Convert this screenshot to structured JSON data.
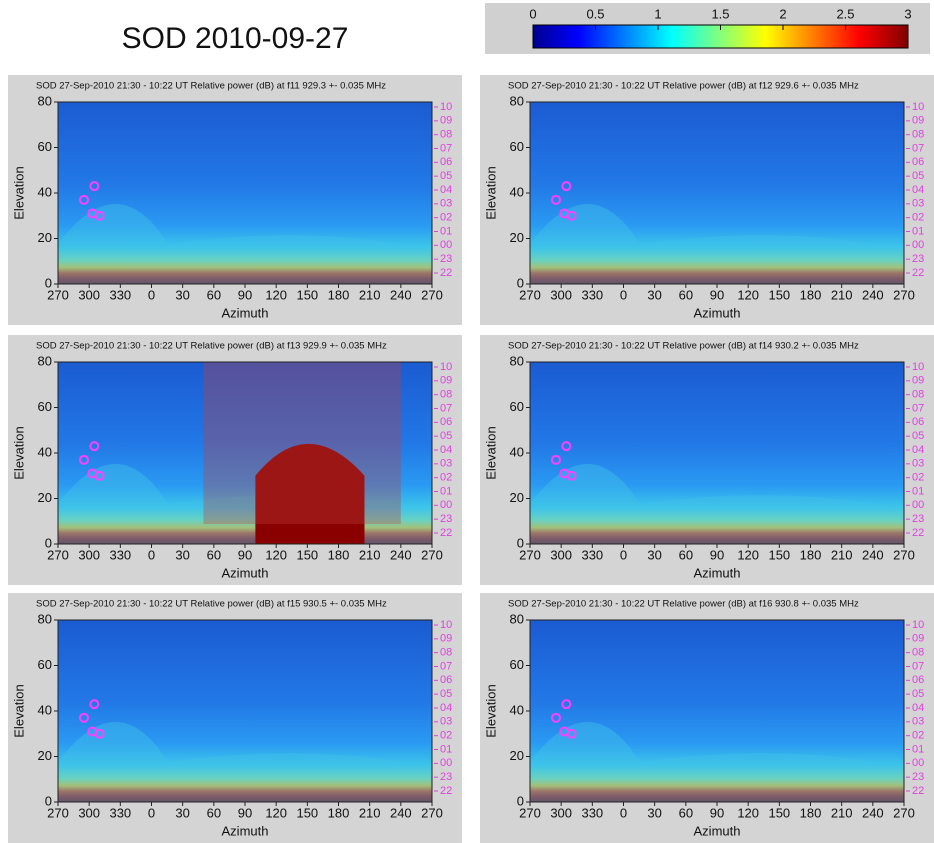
{
  "title": "SOD 2010-09-27",
  "colorbar": {
    "clim": [
      0,
      3
    ],
    "ticks": [
      0,
      0.5,
      1,
      1.5,
      2,
      2.5,
      3
    ]
  },
  "chart_data": [
    {
      "type": "heatmap",
      "title": "SOD  27-Sep-2010  21:30 - 10:22 UT Relative power (dB) at f11  929.3 +- 0.035 MHz",
      "xlabel": "Azimuth",
      "ylabel": "Elevation",
      "xlim": [
        -90,
        270
      ],
      "ylim": [
        0,
        80
      ],
      "xticks": [
        {
          "value": -90,
          "label": "270"
        },
        {
          "value": -60,
          "label": "300"
        },
        {
          "value": -30,
          "label": "330"
        },
        0,
        30,
        60,
        90,
        120,
        150,
        180,
        210,
        240,
        270
      ],
      "yticks": [
        0,
        20,
        40,
        60,
        80
      ],
      "hour_labels": [
        "10",
        "09",
        "08",
        "07",
        "06",
        "05",
        "04",
        "03",
        "02",
        "01",
        "00",
        "23",
        "22"
      ]
    },
    {
      "type": "heatmap",
      "title": "SOD  27-Sep-2010  21:30 - 10:22 UT Relative power (dB) at f12  929.6 +- 0.035 MHz",
      "xlabel": "Azimuth",
      "ylabel": "Elevation",
      "xlim": [
        -90,
        270
      ],
      "ylim": [
        0,
        80
      ],
      "xticks": [
        {
          "value": -90,
          "label": "270"
        },
        {
          "value": -60,
          "label": "300"
        },
        {
          "value": -30,
          "label": "330"
        },
        0,
        30,
        60,
        90,
        120,
        150,
        180,
        210,
        240,
        270
      ],
      "yticks": [
        0,
        20,
        40,
        60,
        80
      ],
      "hour_labels": [
        "10",
        "09",
        "08",
        "07",
        "06",
        "05",
        "04",
        "03",
        "02",
        "01",
        "00",
        "23",
        "22"
      ]
    },
    {
      "type": "heatmap",
      "title": "SOD  27-Sep-2010  21:30 - 10:22 UT Relative power (dB) at f13  929.9 +- 0.035 MHz",
      "xlabel": "Azimuth",
      "ylabel": "Elevation",
      "xlim": [
        -90,
        270
      ],
      "ylim": [
        0,
        80
      ],
      "xticks": [
        {
          "value": -90,
          "label": "270"
        },
        {
          "value": -60,
          "label": "300"
        },
        {
          "value": -30,
          "label": "330"
        },
        0,
        30,
        60,
        90,
        120,
        150,
        180,
        210,
        240,
        270
      ],
      "yticks": [
        0,
        20,
        40,
        60,
        80
      ],
      "hour_labels": [
        "10",
        "09",
        "08",
        "07",
        "06",
        "05",
        "04",
        "03",
        "02",
        "01",
        "00",
        "23",
        "22"
      ]
    },
    {
      "type": "heatmap",
      "title": "SOD  27-Sep-2010  21:30 - 10:22 UT Relative power (dB) at f14  930.2 +- 0.035 MHz",
      "xlabel": "Azimuth",
      "ylabel": "Elevation",
      "xlim": [
        -90,
        270
      ],
      "ylim": [
        0,
        80
      ],
      "xticks": [
        {
          "value": -90,
          "label": "270"
        },
        {
          "value": -60,
          "label": "300"
        },
        {
          "value": -30,
          "label": "330"
        },
        0,
        30,
        60,
        90,
        120,
        150,
        180,
        210,
        240,
        270
      ],
      "yticks": [
        0,
        20,
        40,
        60,
        80
      ],
      "hour_labels": [
        "10",
        "09",
        "08",
        "07",
        "06",
        "05",
        "04",
        "03",
        "02",
        "01",
        "00",
        "23",
        "22"
      ]
    },
    {
      "type": "heatmap",
      "title": "SOD  27-Sep-2010  21:30 - 10:22 UT Relative power (dB) at f15  930.5 +- 0.035 MHz",
      "xlabel": "Azimuth",
      "ylabel": "Elevation",
      "xlim": [
        -90,
        270
      ],
      "ylim": [
        0,
        80
      ],
      "xticks": [
        {
          "value": -90,
          "label": "270"
        },
        {
          "value": -60,
          "label": "300"
        },
        {
          "value": -30,
          "label": "330"
        },
        0,
        30,
        60,
        90,
        120,
        150,
        180,
        210,
        240,
        270
      ],
      "yticks": [
        0,
        20,
        40,
        60,
        80
      ],
      "hour_labels": [
        "10",
        "09",
        "08",
        "07",
        "06",
        "05",
        "04",
        "03",
        "02",
        "01",
        "00",
        "23",
        "22"
      ]
    },
    {
      "type": "heatmap",
      "title": "SOD  27-Sep-2010  21:30 - 10:22 UT Relative power (dB) at f16  930.8 +- 0.035 MHz",
      "xlabel": "Azimuth",
      "ylabel": "Elevation",
      "xlim": [
        -90,
        270
      ],
      "ylim": [
        0,
        80
      ],
      "xticks": [
        {
          "value": -90,
          "label": "270"
        },
        {
          "value": -60,
          "label": "300"
        },
        {
          "value": -30,
          "label": "330"
        },
        0,
        30,
        60,
        90,
        120,
        150,
        180,
        210,
        240,
        270
      ],
      "yticks": [
        0,
        20,
        40,
        60,
        80
      ],
      "hour_labels": [
        "10",
        "09",
        "08",
        "07",
        "06",
        "05",
        "04",
        "03",
        "02",
        "01",
        "00",
        "23",
        "22"
      ]
    }
  ]
}
